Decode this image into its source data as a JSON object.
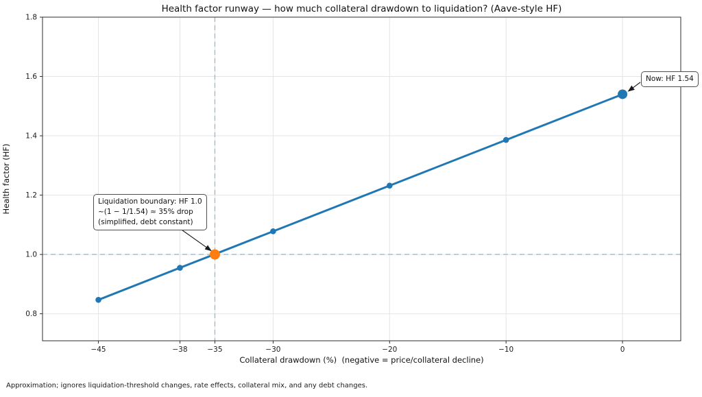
{
  "figure": {
    "footer": "Approximation; ignores liquidation-threshold changes, rate effects, collateral mix, and any debt changes."
  },
  "chart_data": {
    "type": "line",
    "title": "Health factor runway — how much collateral drawdown to liquidation? (Aave-style HF)",
    "xlabel": "Collateral drawdown (%)  (negative = price/collateral decline)",
    "ylabel": "Health factor (HF)",
    "x": [
      -45,
      -38,
      -35,
      -30,
      -20,
      -10,
      0
    ],
    "y": [
      0.847,
      0.955,
      1.001,
      1.078,
      1.232,
      1.386,
      1.54
    ],
    "xticks": [
      -45,
      -38,
      -35,
      -30,
      -20,
      -10,
      0
    ],
    "xtick_labels": [
      "−45",
      "−38",
      "−35",
      "−30",
      "−20",
      "−10",
      "0"
    ],
    "yticks": [
      0.8,
      1.0,
      1.2,
      1.4,
      1.6,
      1.8
    ],
    "ytick_labels": [
      "0.8",
      "1.0",
      "1.2",
      "1.4",
      "1.6",
      "1.8"
    ],
    "xlim": [
      -49.8,
      5.0
    ],
    "ylim": [
      0.709,
      1.8
    ],
    "grid": true,
    "legend": "none",
    "colors": {
      "line": "#1f77b4",
      "marker": "#1f77b4",
      "highlight_marker": "#ff7f0e",
      "crosshair": "#98bdd3",
      "grid": "#e4e4e4",
      "spine": "#2b2b2b",
      "tick_text": "#1a1a1a",
      "arrow": "#1a1a1a"
    },
    "crosshair": {
      "x": -35,
      "y": 1.0
    },
    "now_point": {
      "x": 0,
      "y": 1.54
    },
    "highlight_point": {
      "x": -35,
      "y": 1.0
    },
    "annotations": [
      {
        "id": "now",
        "text": "Now: HF 1.54",
        "target": {
          "x": 0,
          "y": 1.54
        }
      },
      {
        "id": "liquidation-boundary",
        "lines": [
          "Liquidation boundary: HF 1.0",
          "~(1 − 1/1.54) ≈ 35% drop",
          "(simplified, debt constant)"
        ],
        "target": {
          "x": -35,
          "y": 1.0
        }
      }
    ]
  }
}
